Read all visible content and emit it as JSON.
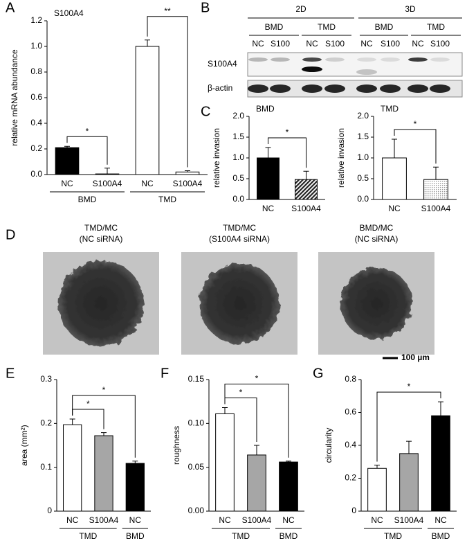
{
  "panel_labels": [
    "A",
    "B",
    "C",
    "D",
    "E",
    "F",
    "G"
  ],
  "chart_data": [
    {
      "type": "bar",
      "title": "S100A4",
      "ylabel": "relative mRNA abundance",
      "categories": [
        "NC",
        "S100A4",
        "NC",
        "S100A4"
      ],
      "groups": [
        "BMD",
        "BMD",
        "TMD",
        "TMD"
      ],
      "values": [
        0.21,
        0.005,
        1.0,
        0.02
      ],
      "errors": [
        0.01,
        0.045,
        0.05,
        0.01
      ],
      "colors": [
        "#000000",
        "#000000",
        "#ffffff",
        "#ffffff"
      ],
      "patterns": [
        "solid",
        "solid",
        "solid",
        "solid"
      ],
      "ylim": [
        0,
        1.2
      ],
      "yticks": [
        {
          "value": 0,
          "label": "0.0"
        },
        0.2,
        0.4,
        0.6,
        0.8,
        {
          "value": 1,
          "label": "1.0"
        },
        1.2
      ],
      "significance": [
        {
          "label": "*",
          "between": [
            0,
            1
          ]
        },
        {
          "label": "**",
          "between": [
            2,
            3
          ]
        }
      ]
    },
    {
      "type": "bar",
      "title": "BMD",
      "ylabel": "relative invasion",
      "categories": [
        "NC",
        "S100A4"
      ],
      "values": [
        1.0,
        0.48
      ],
      "errors": [
        0.25,
        0.2
      ],
      "colors": [
        "#000000",
        "#333333"
      ],
      "patterns": [
        "solid",
        "hatch"
      ],
      "ylim": [
        0,
        2
      ],
      "yticks": [
        {
          "value": 0,
          "label": "0.0"
        },
        0.5,
        {
          "value": 1,
          "label": "1.0"
        },
        1.5,
        {
          "value": 2,
          "label": "2.0"
        }
      ],
      "significance": [
        {
          "label": "*",
          "between": [
            0,
            1
          ]
        }
      ]
    },
    {
      "type": "bar",
      "title": "TMD",
      "ylabel": "relative invasion",
      "categories": [
        "NC",
        "S100A4"
      ],
      "values": [
        1.0,
        0.48
      ],
      "errors": [
        0.45,
        0.3
      ],
      "colors": [
        "#ffffff",
        "#bbbbbb"
      ],
      "patterns": [
        "solid",
        "dots"
      ],
      "ylim": [
        0,
        2
      ],
      "yticks": [
        {
          "value": 0,
          "label": "0.0"
        },
        0.5,
        {
          "value": 1,
          "label": "1.0"
        },
        1.5,
        {
          "value": 2,
          "label": "2.0"
        }
      ],
      "significance": [
        {
          "label": "*",
          "between": [
            0,
            1
          ]
        }
      ]
    },
    {
      "type": "bar",
      "ylabel": "area (mm²)",
      "categories": [
        "NC",
        "S100A4",
        "NC"
      ],
      "groups": [
        "TMD",
        "TMD",
        "BMD"
      ],
      "values": [
        0.197,
        0.172,
        0.109
      ],
      "errors": [
        0.013,
        0.007,
        0.005
      ],
      "colors": [
        "#ffffff",
        "#a6a6a6",
        "#000000"
      ],
      "patterns": [
        "solid",
        "solid",
        "solid"
      ],
      "ylim": [
        0,
        0.3
      ],
      "yticks": [
        0,
        0.1,
        0.2,
        0.3
      ],
      "significance": [
        {
          "label": "*",
          "between": [
            0,
            1
          ]
        },
        {
          "label": "*",
          "between": [
            0,
            2
          ]
        }
      ]
    },
    {
      "type": "bar",
      "ylabel": "roughness",
      "categories": [
        "NC",
        "S100A4",
        "NC"
      ],
      "groups": [
        "TMD",
        "TMD",
        "BMD"
      ],
      "values": [
        0.111,
        0.064,
        0.056
      ],
      "errors": [
        0.007,
        0.011,
        0.001
      ],
      "colors": [
        "#ffffff",
        "#a6a6a6",
        "#000000"
      ],
      "patterns": [
        "solid",
        "solid",
        "solid"
      ],
      "ylim": [
        0,
        0.15
      ],
      "yticks": [
        {
          "value": 0,
          "label": "0.00"
        },
        0.05,
        {
          "value": 0.1,
          "label": "0.10"
        },
        0.15
      ],
      "significance": [
        {
          "label": "*",
          "between": [
            0,
            1
          ]
        },
        {
          "label": "*",
          "between": [
            0,
            2
          ]
        }
      ]
    },
    {
      "type": "bar",
      "ylabel": "circularity",
      "categories": [
        "NC",
        "S100A4",
        "NC"
      ],
      "groups": [
        "TMD",
        "TMD",
        "BMD"
      ],
      "values": [
        0.26,
        0.35,
        0.58
      ],
      "errors": [
        0.02,
        0.075,
        0.085
      ],
      "colors": [
        "#ffffff",
        "#a6a6a6",
        "#000000"
      ],
      "patterns": [
        "solid",
        "solid",
        "solid"
      ],
      "ylim": [
        0,
        0.8
      ],
      "yticks": [
        0,
        0.2,
        0.4,
        0.6,
        0.8
      ],
      "significance": [
        {
          "label": "*",
          "between": [
            0,
            2
          ]
        }
      ]
    }
  ],
  "blot": {
    "conditions": [
      "2D",
      "3D"
    ],
    "cell_lines": [
      "BMD",
      "TMD",
      "BMD",
      "TMD"
    ],
    "lanes": [
      "NC",
      "S100",
      "NC",
      "S100",
      "NC",
      "S100",
      "NC",
      "S100"
    ],
    "rows": [
      "S100A4",
      "β-actin"
    ]
  },
  "spheroids": {
    "labels": [
      [
        "TMD/MC",
        "(NC siRNA)"
      ],
      [
        "TMD/MC",
        "(S100A4 siRNA)"
      ],
      [
        "BMD/MC",
        "(NC siRNA)"
      ]
    ],
    "scale_bar": "100 µm"
  }
}
